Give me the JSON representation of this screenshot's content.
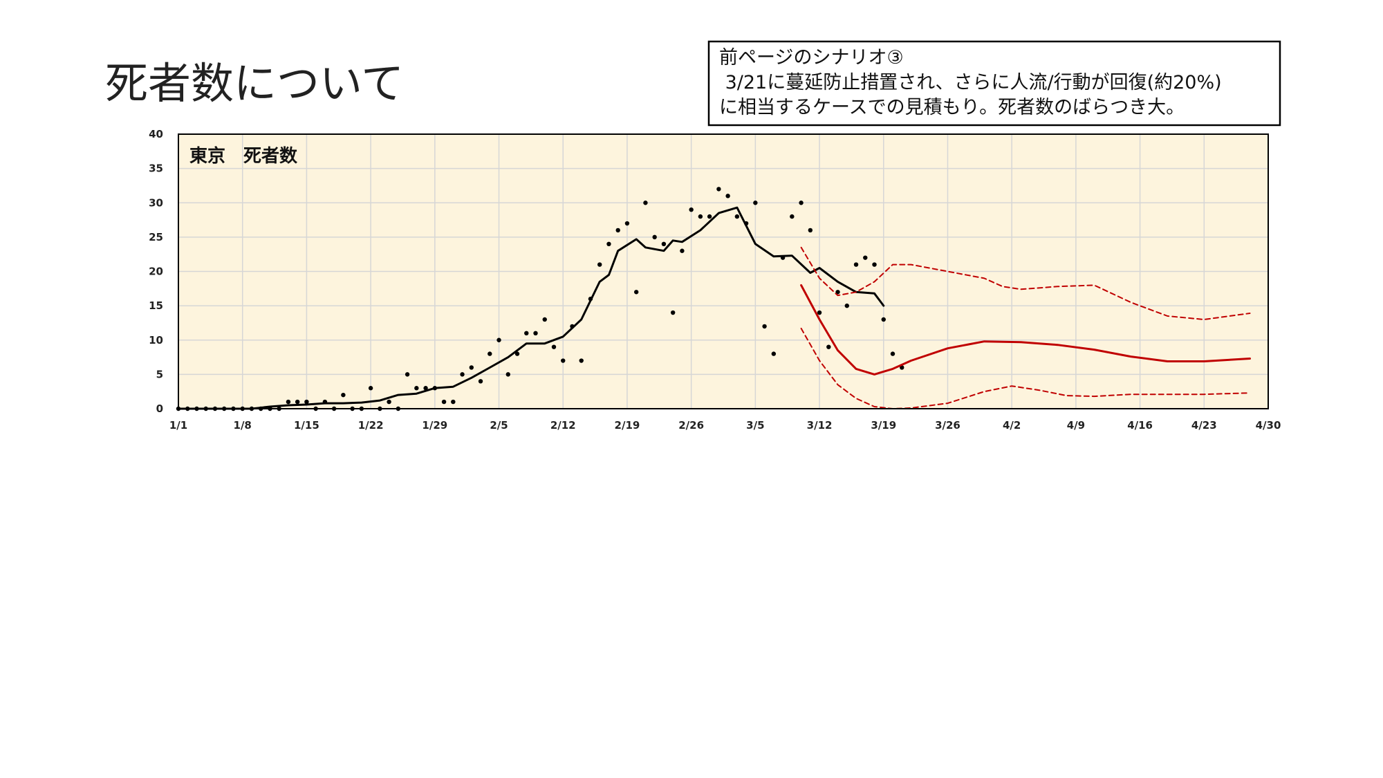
{
  "header": {
    "title": "死者数について"
  },
  "note": {
    "lines": [
      "前ページのシナリオ③",
      " 3/21に蔓延防止措置され、さらに人流/行動が回復(約20%)",
      "に相当するケースでの見積もり。死者数のばらつき大。"
    ]
  },
  "chart_data": {
    "type": "line",
    "title": "東京　死者数",
    "xlim": [
      0,
      119
    ],
    "ylim": [
      0,
      40
    ],
    "xticks": [
      {
        "value": 0,
        "label": "1/1"
      },
      {
        "value": 7,
        "label": "1/8"
      },
      {
        "value": 14,
        "label": "1/15"
      },
      {
        "value": 21,
        "label": "1/22"
      },
      {
        "value": 28,
        "label": "1/29"
      },
      {
        "value": 35,
        "label": "2/5"
      },
      {
        "value": 42,
        "label": "2/12"
      },
      {
        "value": 49,
        "label": "2/19"
      },
      {
        "value": 56,
        "label": "2/26"
      },
      {
        "value": 63,
        "label": "3/5"
      },
      {
        "value": 70,
        "label": "3/12"
      },
      {
        "value": 77,
        "label": "3/19"
      },
      {
        "value": 84,
        "label": "3/26"
      },
      {
        "value": 91,
        "label": "4/2"
      },
      {
        "value": 98,
        "label": "4/9"
      },
      {
        "value": 105,
        "label": "4/16"
      },
      {
        "value": 112,
        "label": "4/23"
      },
      {
        "value": 119,
        "label": "4/30"
      }
    ],
    "yticks": [
      0,
      5,
      10,
      15,
      20,
      25,
      30,
      35,
      40
    ],
    "grid": true,
    "series": [
      {
        "style": "markers",
        "color": "#000000",
        "x": [
          0,
          1,
          2,
          3,
          4,
          5,
          6,
          7,
          8,
          9,
          10,
          11,
          12,
          13,
          14,
          15,
          16,
          17,
          18,
          19,
          20,
          21,
          22,
          23,
          24,
          25,
          26,
          27,
          28,
          29,
          30,
          31,
          32,
          33,
          34,
          35,
          36,
          37,
          38,
          39,
          40,
          41,
          42,
          43,
          44,
          45,
          46,
          47,
          48,
          49,
          50,
          51,
          52,
          53,
          54,
          55,
          56,
          57,
          58,
          59,
          60,
          61,
          62,
          63,
          64,
          65,
          66,
          67,
          68,
          69,
          70,
          71,
          72,
          73,
          74,
          75,
          76,
          77,
          78,
          79
        ],
        "values": [
          0,
          0,
          0,
          0,
          0,
          0,
          0,
          0,
          0,
          0,
          0,
          0,
          1,
          1,
          1,
          0,
          1,
          0,
          2,
          0,
          0,
          3,
          0,
          1,
          0,
          5,
          3,
          3,
          3,
          1,
          1,
          5,
          6,
          4,
          8,
          10,
          5,
          8,
          11,
          11,
          13,
          9,
          7,
          12,
          7,
          16,
          21,
          24,
          26,
          27,
          17,
          30,
          25,
          24,
          14,
          23,
          29,
          28,
          28,
          32,
          31,
          28,
          27,
          30,
          12,
          8,
          22,
          28,
          30,
          26,
          14,
          9,
          17,
          15,
          21,
          22,
          21,
          13,
          8,
          6
        ]
      },
      {
        "style": "solid",
        "color": "#000000",
        "x": [
          0,
          8,
          10,
          12,
          14,
          16,
          18,
          20,
          22,
          24,
          26,
          28,
          30,
          32,
          34,
          36,
          38,
          40,
          42,
          44,
          46,
          47,
          48,
          50,
          51,
          53,
          54,
          55,
          57,
          59,
          61,
          63,
          65,
          67,
          69,
          70,
          72,
          74,
          76,
          77
        ],
        "values": [
          0,
          0,
          0.3,
          0.5,
          0.6,
          0.8,
          0.8,
          0.9,
          1.2,
          2,
          2.2,
          3,
          3.2,
          4.5,
          6,
          7.5,
          9.5,
          9.5,
          10.5,
          13,
          18.5,
          19.5,
          23,
          24.7,
          23.5,
          23,
          24.5,
          24.3,
          26,
          28.5,
          29.3,
          24,
          22.2,
          22.3,
          19.8,
          20.5,
          18.5,
          17,
          16.8,
          15
        ]
      },
      {
        "style": "solid",
        "color": "#c00000",
        "x": [
          68,
          70,
          72,
          74,
          76,
          78,
          80,
          84,
          88,
          92,
          96,
          100,
          104,
          108,
          112,
          117
        ],
        "values": [
          18,
          13,
          8.5,
          5.8,
          5,
          5.8,
          7,
          8.8,
          9.8,
          9.7,
          9.3,
          8.6,
          7.6,
          6.9,
          6.9,
          7.3
        ]
      },
      {
        "style": "dashed",
        "color": "#c00000",
        "x": [
          68,
          70,
          72,
          74,
          76,
          78,
          80,
          84,
          88,
          90,
          92,
          96,
          100,
          104,
          108,
          112,
          117
        ],
        "values": [
          23.5,
          19,
          16.5,
          17,
          18.5,
          21,
          21,
          20,
          19,
          17.8,
          17.4,
          17.8,
          18,
          15.5,
          13.5,
          13,
          13.9
        ]
      },
      {
        "style": "dashed",
        "color": "#c00000",
        "x": [
          68,
          70,
          72,
          74,
          76,
          78,
          80,
          84,
          88,
          91,
          94,
          97,
          100,
          104,
          108,
          112,
          117
        ],
        "values": [
          11.7,
          7,
          3.5,
          1.5,
          0.3,
          0,
          0.1,
          0.8,
          2.5,
          3.3,
          2.7,
          1.9,
          1.8,
          2.1,
          2.1,
          2.1,
          2.3
        ]
      }
    ]
  }
}
